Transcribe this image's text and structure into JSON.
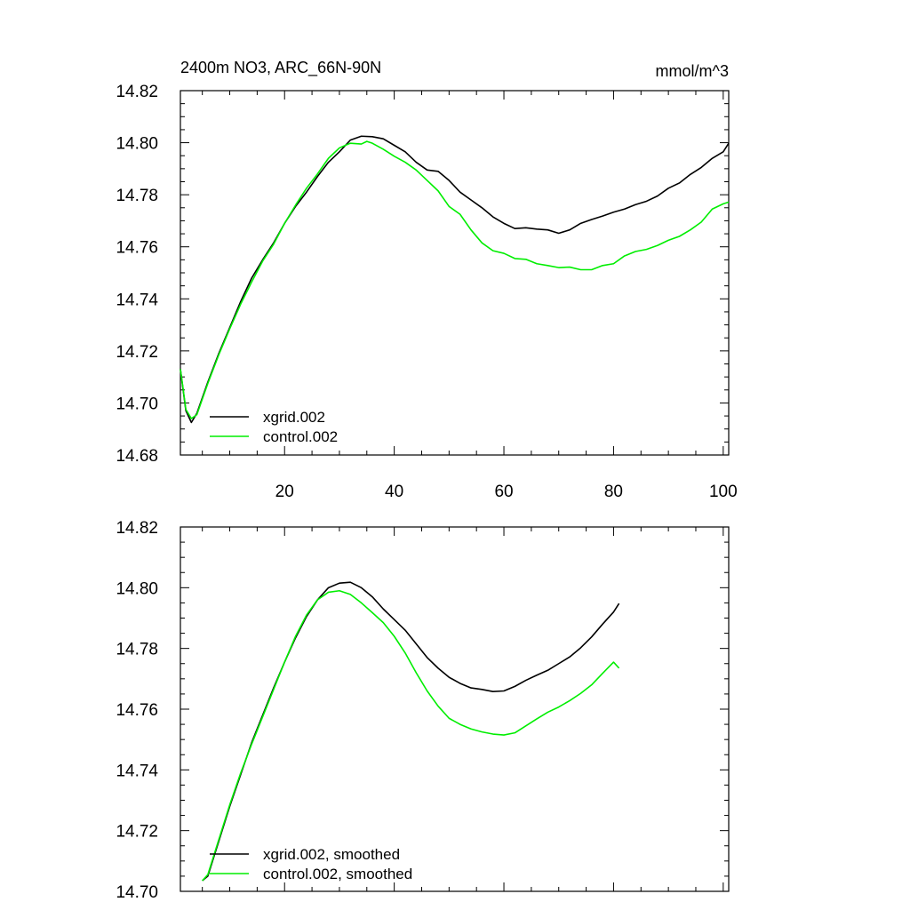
{
  "title_left": "2400m NO3, ARC_66N-90N",
  "title_right": "mmol/m^3",
  "colors": {
    "xgrid": "#000000",
    "control": "#00ee00"
  },
  "chart_data": [
    {
      "type": "line",
      "name": "raw",
      "xlim": [
        1,
        101
      ],
      "ylim": [
        14.68,
        14.82
      ],
      "x_ticks": [
        20,
        40,
        60,
        80,
        100
      ],
      "x_tick_labels": [
        "20",
        "40",
        "60",
        "80",
        "100"
      ],
      "y_ticks": [
        14.68,
        14.7,
        14.72,
        14.74,
        14.76,
        14.78,
        14.8,
        14.82
      ],
      "y_tick_labels": [
        "14.68",
        "14.70",
        "14.72",
        "14.74",
        "14.76",
        "14.78",
        "14.80",
        "14.82"
      ],
      "legend_position": "bottom-left",
      "series": [
        {
          "name": "xgrid.002",
          "color": "#000000",
          "points": [
            [
              1,
              14.713
            ],
            [
              2,
              14.697
            ],
            [
              3,
              14.6925
            ],
            [
              4,
              14.696
            ],
            [
              6,
              14.708
            ],
            [
              8,
              14.719
            ],
            [
              10,
              14.729
            ],
            [
              12,
              14.739
            ],
            [
              14,
              14.748
            ],
            [
              16,
              14.755
            ],
            [
              18,
              14.7615
            ],
            [
              20,
              14.769
            ],
            [
              22,
              14.7755
            ],
            [
              24,
              14.781
            ],
            [
              26,
              14.787
            ],
            [
              28,
              14.7925
            ],
            [
              30,
              14.7965
            ],
            [
              32,
              14.801
            ],
            [
              34,
              14.8025
            ],
            [
              36,
              14.8023
            ],
            [
              38,
              14.8015
            ],
            [
              40,
              14.799
            ],
            [
              42,
              14.7965
            ],
            [
              44,
              14.7925
            ],
            [
              46,
              14.7895
            ],
            [
              48,
              14.789
            ],
            [
              50,
              14.7855
            ],
            [
              52,
              14.781
            ],
            [
              54,
              14.778
            ],
            [
              56,
              14.775
            ],
            [
              58,
              14.7715
            ],
            [
              60,
              14.769
            ],
            [
              62,
              14.767
            ],
            [
              64,
              14.7673
            ],
            [
              66,
              14.7668
            ],
            [
              68,
              14.7665
            ],
            [
              70,
              14.7652
            ],
            [
              72,
              14.7665
            ],
            [
              74,
              14.769
            ],
            [
              76,
              14.7705
            ],
            [
              78,
              14.7718
            ],
            [
              80,
              14.7733
            ],
            [
              82,
              14.7745
            ],
            [
              84,
              14.7762
            ],
            [
              86,
              14.7775
            ],
            [
              88,
              14.7795
            ],
            [
              90,
              14.7825
            ],
            [
              92,
              14.7845
            ],
            [
              94,
              14.7878
            ],
            [
              96,
              14.7905
            ],
            [
              98,
              14.794
            ],
            [
              100,
              14.7965
            ],
            [
              101,
              14.7998
            ]
          ]
        },
        {
          "name": "control.002",
          "color": "#00ee00",
          "points": [
            [
              1,
              14.713
            ],
            [
              2,
              14.6975
            ],
            [
              3,
              14.694
            ],
            [
              4,
              14.6955
            ],
            [
              6,
              14.7075
            ],
            [
              8,
              14.7185
            ],
            [
              10,
              14.7285
            ],
            [
              12,
              14.738
            ],
            [
              14,
              14.7465
            ],
            [
              16,
              14.7545
            ],
            [
              18,
              14.761
            ],
            [
              20,
              14.769
            ],
            [
              22,
              14.776
            ],
            [
              24,
              14.7825
            ],
            [
              26,
              14.788
            ],
            [
              28,
              14.794
            ],
            [
              30,
              14.798
            ],
            [
              32,
              14.7998
            ],
            [
              34,
              14.7995
            ],
            [
              35,
              14.8005
            ],
            [
              36,
              14.7998
            ],
            [
              38,
              14.7975
            ],
            [
              40,
              14.7948
            ],
            [
              42,
              14.7925
            ],
            [
              44,
              14.7895
            ],
            [
              46,
              14.7855
            ],
            [
              48,
              14.7815
            ],
            [
              50,
              14.7755
            ],
            [
              52,
              14.7725
            ],
            [
              54,
              14.7665
            ],
            [
              56,
              14.7615
            ],
            [
              58,
              14.7585
            ],
            [
              60,
              14.7575
            ],
            [
              62,
              14.7555
            ],
            [
              64,
              14.7552
            ],
            [
              66,
              14.7535
            ],
            [
              68,
              14.7528
            ],
            [
              70,
              14.752
            ],
            [
              72,
              14.7522
            ],
            [
              74,
              14.7512
            ],
            [
              76,
              14.7512
            ],
            [
              78,
              14.7528
            ],
            [
              80,
              14.7535
            ],
            [
              82,
              14.7565
            ],
            [
              84,
              14.7582
            ],
            [
              86,
              14.759
            ],
            [
              88,
              14.7605
            ],
            [
              90,
              14.7625
            ],
            [
              92,
              14.764
            ],
            [
              94,
              14.7665
            ],
            [
              96,
              14.7695
            ],
            [
              98,
              14.7745
            ],
            [
              100,
              14.7765
            ],
            [
              101,
              14.7772
            ]
          ]
        }
      ]
    },
    {
      "type": "line",
      "name": "smoothed",
      "xlim": [
        1,
        101
      ],
      "ylim": [
        14.7,
        14.82
      ],
      "x_ticks": [
        20,
        40,
        60,
        80,
        100
      ],
      "y_ticks": [
        14.7,
        14.72,
        14.74,
        14.76,
        14.78,
        14.8,
        14.82
      ],
      "y_tick_labels": [
        "14.70",
        "14.72",
        "14.74",
        "14.76",
        "14.78",
        "14.80",
        "14.82"
      ],
      "legend_position": "bottom-left",
      "series": [
        {
          "name": "xgrid.002, smoothed",
          "color": "#000000",
          "points": [
            [
              5,
              14.7035
            ],
            [
              6,
              14.705
            ],
            [
              8,
              14.7165
            ],
            [
              10,
              14.728
            ],
            [
              12,
              14.7385
            ],
            [
              14,
              14.749
            ],
            [
              16,
              14.758
            ],
            [
              18,
              14.767
            ],
            [
              20,
              14.7755
            ],
            [
              22,
              14.7835
            ],
            [
              24,
              14.7905
            ],
            [
              26,
              14.796
            ],
            [
              28,
              14.8
            ],
            [
              30,
              14.8015
            ],
            [
              32,
              14.8018
            ],
            [
              34,
              14.8
            ],
            [
              36,
              14.797
            ],
            [
              38,
              14.793
            ],
            [
              40,
              14.7895
            ],
            [
              42,
              14.786
            ],
            [
              44,
              14.7815
            ],
            [
              46,
              14.777
            ],
            [
              48,
              14.7735
            ],
            [
              50,
              14.7705
            ],
            [
              52,
              14.7685
            ],
            [
              54,
              14.767
            ],
            [
              56,
              14.7665
            ],
            [
              58,
              14.7658
            ],
            [
              60,
              14.766
            ],
            [
              62,
              14.7675
            ],
            [
              64,
              14.7695
            ],
            [
              66,
              14.7712
            ],
            [
              68,
              14.7728
            ],
            [
              70,
              14.775
            ],
            [
              72,
              14.7772
            ],
            [
              74,
              14.7802
            ],
            [
              76,
              14.7838
            ],
            [
              78,
              14.788
            ],
            [
              80,
              14.792
            ],
            [
              81,
              14.7948
            ]
          ]
        },
        {
          "name": "control.002, smoothed",
          "color": "#00ee00",
          "points": [
            [
              5,
              14.7035
            ],
            [
              6,
              14.7055
            ],
            [
              8,
              14.717
            ],
            [
              10,
              14.7285
            ],
            [
              12,
              14.739
            ],
            [
              14,
              14.7485
            ],
            [
              16,
              14.7575
            ],
            [
              18,
              14.7665
            ],
            [
              20,
              14.7755
            ],
            [
              22,
              14.784
            ],
            [
              24,
              14.791
            ],
            [
              26,
              14.796
            ],
            [
              28,
              14.7985
            ],
            [
              30,
              14.799
            ],
            [
              32,
              14.7978
            ],
            [
              34,
              14.795
            ],
            [
              36,
              14.7918
            ],
            [
              38,
              14.7885
            ],
            [
              40,
              14.784
            ],
            [
              42,
              14.7785
            ],
            [
              44,
              14.772
            ],
            [
              46,
              14.766
            ],
            [
              48,
              14.761
            ],
            [
              50,
              14.757
            ],
            [
              52,
              14.755
            ],
            [
              54,
              14.7535
            ],
            [
              56,
              14.7525
            ],
            [
              58,
              14.7518
            ],
            [
              60,
              14.7515
            ],
            [
              62,
              14.7522
            ],
            [
              64,
              14.7545
            ],
            [
              66,
              14.7568
            ],
            [
              68,
              14.759
            ],
            [
              70,
              14.7607
            ],
            [
              72,
              14.7628
            ],
            [
              74,
              14.7652
            ],
            [
              76,
              14.768
            ],
            [
              78,
              14.7718
            ],
            [
              80,
              14.7755
            ],
            [
              81,
              14.7735
            ]
          ]
        }
      ]
    }
  ]
}
